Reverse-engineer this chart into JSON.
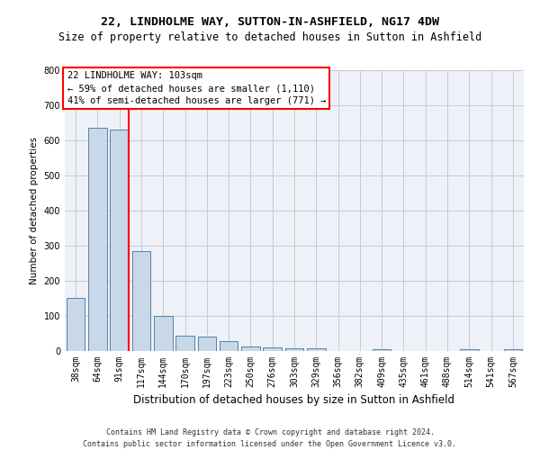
{
  "title1": "22, LINDHOLME WAY, SUTTON-IN-ASHFIELD, NG17 4DW",
  "title2": "Size of property relative to detached houses in Sutton in Ashfield",
  "xlabel": "Distribution of detached houses by size in Sutton in Ashfield",
  "ylabel": "Number of detached properties",
  "footer1": "Contains HM Land Registry data © Crown copyright and database right 2024.",
  "footer2": "Contains public sector information licensed under the Open Government Licence v3.0.",
  "annotation_line1": "22 LINDHOLME WAY: 103sqm",
  "annotation_line2": "← 59% of detached houses are smaller (1,110)",
  "annotation_line3": "41% of semi-detached houses are larger (771) →",
  "bar_color": "#c8d8e8",
  "bar_edge_color": "#5580aa",
  "redline_x": 2.42,
  "categories": [
    "38sqm",
    "64sqm",
    "91sqm",
    "117sqm",
    "144sqm",
    "170sqm",
    "197sqm",
    "223sqm",
    "250sqm",
    "276sqm",
    "303sqm",
    "329sqm",
    "356sqm",
    "382sqm",
    "409sqm",
    "435sqm",
    "461sqm",
    "488sqm",
    "514sqm",
    "541sqm",
    "567sqm"
  ],
  "values": [
    150,
    635,
    630,
    285,
    100,
    43,
    42,
    27,
    12,
    10,
    7,
    8,
    0,
    0,
    5,
    0,
    0,
    0,
    5,
    0,
    5
  ],
  "ylim": [
    0,
    800
  ],
  "yticks": [
    0,
    100,
    200,
    300,
    400,
    500,
    600,
    700,
    800
  ],
  "grid_color": "#c8c8d0",
  "bg_color": "#eef2f8",
  "title1_fontsize": 9.5,
  "title2_fontsize": 8.5,
  "xlabel_fontsize": 8.5,
  "ylabel_fontsize": 7.5,
  "tick_fontsize": 7.0,
  "annot_fontsize": 7.5,
  "footer_fontsize": 6.0
}
